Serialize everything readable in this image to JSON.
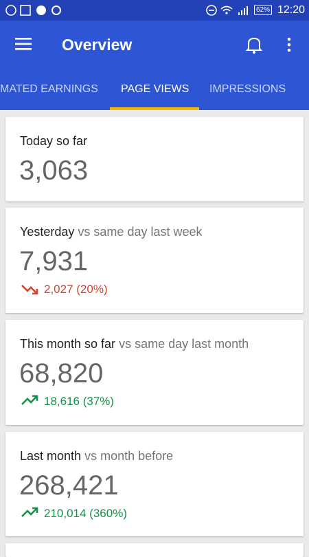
{
  "status_bar": {
    "battery": "62%",
    "time": "12:20"
  },
  "app_bar": {
    "title": "Overview"
  },
  "tabs": [
    "MATED EARNINGS",
    "PAGE VIEWS",
    "IMPRESSIONS"
  ],
  "cards": [
    {
      "title": "Today so far",
      "value": "3,063"
    },
    {
      "title": "Yesterday",
      "subtitle": "vs same day last week",
      "value": "7,931",
      "change": "2,027 (20%)"
    },
    {
      "title": "This month so far",
      "subtitle": "vs same day last month",
      "value": "68,820",
      "change": "18,616 (37%)"
    },
    {
      "title": "Last month",
      "subtitle": "vs month before",
      "value": "268,421",
      "change": "210,014 (360%)"
    }
  ]
}
